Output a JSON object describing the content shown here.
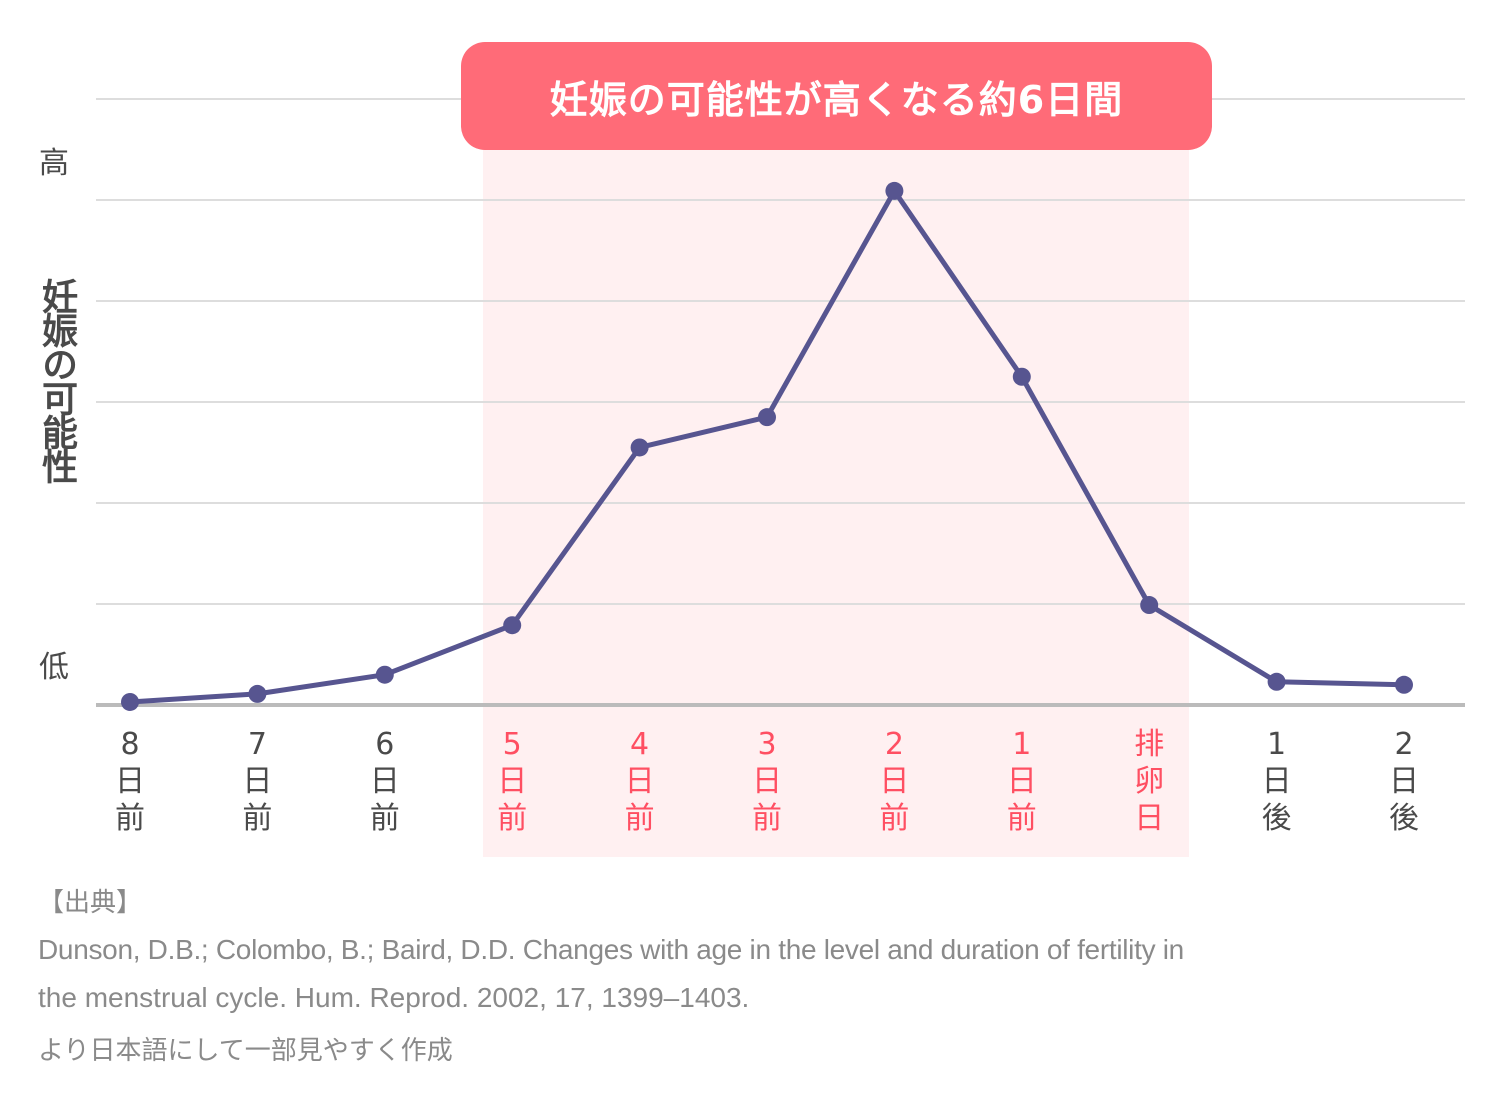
{
  "chart_data": {
    "type": "line",
    "title": "妊娠の可能性が高くなる約6日間",
    "ylabel": "妊娠の可能性",
    "ytick_high": "高",
    "ytick_low": "低",
    "ylim": [
      0,
      6
    ],
    "grid": true,
    "categories": [
      [
        "8",
        "日",
        "前"
      ],
      [
        "7",
        "日",
        "前"
      ],
      [
        "6",
        "日",
        "前"
      ],
      [
        "5",
        "日",
        "前"
      ],
      [
        "4",
        "日",
        "前"
      ],
      [
        "3",
        "日",
        "前"
      ],
      [
        "2",
        "日",
        "前"
      ],
      [
        "1",
        "日",
        "前"
      ],
      [
        "排",
        "卵",
        "日"
      ],
      [
        "1",
        "日",
        "後"
      ],
      [
        "2",
        "日",
        "後"
      ]
    ],
    "highlight_range": [
      3,
      8
    ],
    "series": [
      {
        "name": "妊娠の可能性",
        "values": [
          0.03,
          0.11,
          0.3,
          0.79,
          2.55,
          2.85,
          5.09,
          3.25,
          0.99,
          0.23,
          0.2
        ]
      }
    ],
    "colors": {
      "line": "#575590",
      "highlight_band": "#fff0f1",
      "highlight_text": "#ff4f62",
      "banner": "#ff6b78",
      "grid": "#dddddd",
      "axis": "#bbbbbb"
    }
  },
  "source": {
    "heading": "【出典】",
    "line1": "Dunson, D.B.; Colombo, B.; Baird, D.D. Changes with age in the level and duration of fertility in",
    "line2": "the menstrual cycle. Hum. Reprod. 2002, 17, 1399–1403.",
    "line3": "より日本語にして一部見やすく作成"
  }
}
